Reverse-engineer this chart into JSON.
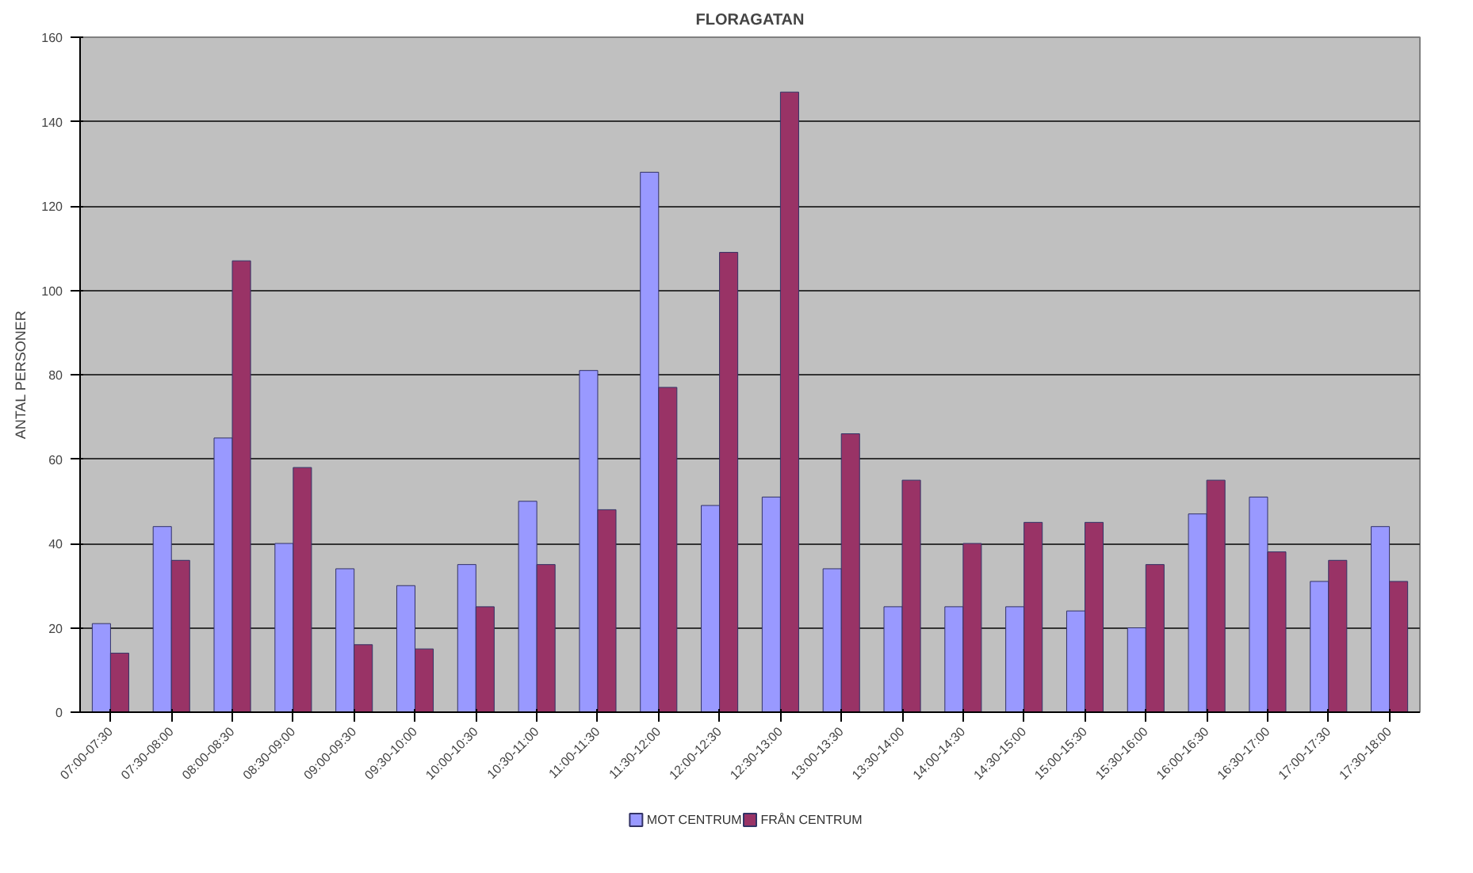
{
  "chart_data": {
    "type": "bar",
    "title": "FLORAGATAN",
    "ylabel": "ANTAL PERSONER",
    "categories": [
      "07:00-07:30",
      "07:30-08:00",
      "08:00-08:30",
      "08:30-09:00",
      "09:00-09:30",
      "09:30-10:00",
      "10:00-10:30",
      "10:30-11:00",
      "11:00-11:30",
      "11:30-12:00",
      "12:00-12:30",
      "12:30-13:00",
      "13:00-13:30",
      "13:30-14:00",
      "14:00-14:30",
      "14:30-15:00",
      "15:00-15:30",
      "15:30-16:00",
      "16:00-16:30",
      "16:30-17:00",
      "17:00-17:30",
      "17:30-18:00"
    ],
    "series": [
      {
        "name": "MOT CENTRUM",
        "color": "#9999ff",
        "values": [
          21,
          44,
          65,
          40,
          34,
          30,
          35,
          50,
          81,
          128,
          49,
          51,
          34,
          25,
          25,
          25,
          24,
          20,
          47,
          51,
          31,
          44
        ]
      },
      {
        "name": "FRÅN CENTRUM",
        "color": "#993366",
        "values": [
          14,
          36,
          107,
          58,
          16,
          15,
          25,
          35,
          48,
          77,
          109,
          147,
          66,
          55,
          40,
          45,
          45,
          35,
          55,
          38,
          36,
          31
        ]
      }
    ],
    "ylim": [
      0,
      160
    ],
    "yticks": [
      0,
      20,
      40,
      60,
      80,
      100,
      120,
      140,
      160
    ],
    "grid": "y",
    "legend": "bottom"
  }
}
